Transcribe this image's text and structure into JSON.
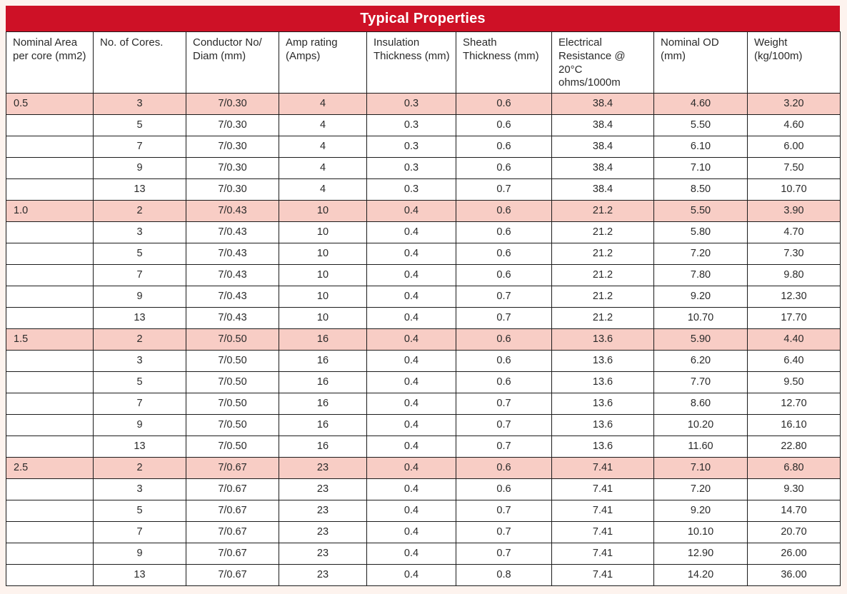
{
  "title_bar": {
    "label": "Typical Properties"
  },
  "colors": {
    "header_red": "#ce1126",
    "title_text": "#ffffff",
    "row_highlight_pink": "#f8cdc5",
    "grid_border": "#1b1b1b",
    "page_background": "#fdf3ee"
  },
  "table": {
    "columns": [
      "Nominal Area\nper core (mm2)",
      "No. of Cores.",
      "Conductor No/\nDiam (mm)",
      "Amp rating\n(Amps)",
      "Insulation\nThickness (mm)",
      "Sheath\nThickness (mm)",
      "Electrical\nResistance @ 20°C\nohms/1000m",
      "Nominal OD\n(mm)",
      "Weight\n(kg/100m)"
    ],
    "field_order": [
      "area",
      "cores",
      "conductor",
      "amp",
      "insulation",
      "sheath",
      "resistance",
      "od",
      "weight"
    ],
    "rows": [
      {
        "highlight": true,
        "area": "0.5",
        "cores": "3",
        "conductor": "7/0.30",
        "amp": "4",
        "insulation": "0.3",
        "sheath": "0.6",
        "resistance": "38.4",
        "od": "4.60",
        "weight": "3.20"
      },
      {
        "highlight": false,
        "area": "",
        "cores": "5",
        "conductor": "7/0.30",
        "amp": "4",
        "insulation": "0.3",
        "sheath": "0.6",
        "resistance": "38.4",
        "od": "5.50",
        "weight": "4.60"
      },
      {
        "highlight": false,
        "area": "",
        "cores": "7",
        "conductor": "7/0.30",
        "amp": "4",
        "insulation": "0.3",
        "sheath": "0.6",
        "resistance": "38.4",
        "od": "6.10",
        "weight": "6.00"
      },
      {
        "highlight": false,
        "area": "",
        "cores": "9",
        "conductor": "7/0.30",
        "amp": "4",
        "insulation": "0.3",
        "sheath": "0.6",
        "resistance": "38.4",
        "od": "7.10",
        "weight": "7.50"
      },
      {
        "highlight": false,
        "area": "",
        "cores": "13",
        "conductor": "7/0.30",
        "amp": "4",
        "insulation": "0.3",
        "sheath": "0.7",
        "resistance": "38.4",
        "od": "8.50",
        "weight": "10.70"
      },
      {
        "highlight": true,
        "area": "1.0",
        "cores": "2",
        "conductor": "7/0.43",
        "amp": "10",
        "insulation": "0.4",
        "sheath": "0.6",
        "resistance": "21.2",
        "od": "5.50",
        "weight": "3.90"
      },
      {
        "highlight": false,
        "area": "",
        "cores": "3",
        "conductor": "7/0.43",
        "amp": "10",
        "insulation": "0.4",
        "sheath": "0.6",
        "resistance": "21.2",
        "od": "5.80",
        "weight": "4.70"
      },
      {
        "highlight": false,
        "area": "",
        "cores": "5",
        "conductor": "7/0.43",
        "amp": "10",
        "insulation": "0.4",
        "sheath": "0.6",
        "resistance": "21.2",
        "od": "7.20",
        "weight": "7.30"
      },
      {
        "highlight": false,
        "area": "",
        "cores": "7",
        "conductor": "7/0.43",
        "amp": "10",
        "insulation": "0.4",
        "sheath": "0.6",
        "resistance": "21.2",
        "od": "7.80",
        "weight": "9.80"
      },
      {
        "highlight": false,
        "area": "",
        "cores": "9",
        "conductor": "7/0.43",
        "amp": "10",
        "insulation": "0.4",
        "sheath": "0.7",
        "resistance": "21.2",
        "od": "9.20",
        "weight": "12.30"
      },
      {
        "highlight": false,
        "area": "",
        "cores": "13",
        "conductor": "7/0.43",
        "amp": "10",
        "insulation": "0.4",
        "sheath": "0.7",
        "resistance": "21.2",
        "od": "10.70",
        "weight": "17.70"
      },
      {
        "highlight": true,
        "area": "1.5",
        "cores": "2",
        "conductor": "7/0.50",
        "amp": "16",
        "insulation": "0.4",
        "sheath": "0.6",
        "resistance": "13.6",
        "od": "5.90",
        "weight": "4.40"
      },
      {
        "highlight": false,
        "area": "",
        "cores": "3",
        "conductor": "7/0.50",
        "amp": "16",
        "insulation": "0.4",
        "sheath": "0.6",
        "resistance": "13.6",
        "od": "6.20",
        "weight": "6.40"
      },
      {
        "highlight": false,
        "area": "",
        "cores": "5",
        "conductor": "7/0.50",
        "amp": "16",
        "insulation": "0.4",
        "sheath": "0.6",
        "resistance": "13.6",
        "od": "7.70",
        "weight": "9.50"
      },
      {
        "highlight": false,
        "area": "",
        "cores": "7",
        "conductor": "7/0.50",
        "amp": "16",
        "insulation": "0.4",
        "sheath": "0.7",
        "resistance": "13.6",
        "od": "8.60",
        "weight": "12.70"
      },
      {
        "highlight": false,
        "area": "",
        "cores": "9",
        "conductor": "7/0.50",
        "amp": "16",
        "insulation": "0.4",
        "sheath": "0.7",
        "resistance": "13.6",
        "od": "10.20",
        "weight": "16.10"
      },
      {
        "highlight": false,
        "area": "",
        "cores": "13",
        "conductor": "7/0.50",
        "amp": "16",
        "insulation": "0.4",
        "sheath": "0.7",
        "resistance": "13.6",
        "od": "11.60",
        "weight": "22.80"
      },
      {
        "highlight": true,
        "area": "2.5",
        "cores": "2",
        "conductor": "7/0.67",
        "amp": "23",
        "insulation": "0.4",
        "sheath": "0.6",
        "resistance": "7.41",
        "od": "7.10",
        "weight": "6.80"
      },
      {
        "highlight": false,
        "area": "",
        "cores": "3",
        "conductor": "7/0.67",
        "amp": "23",
        "insulation": "0.4",
        "sheath": "0.6",
        "resistance": "7.41",
        "od": "7.20",
        "weight": "9.30"
      },
      {
        "highlight": false,
        "area": "",
        "cores": "5",
        "conductor": "7/0.67",
        "amp": "23",
        "insulation": "0.4",
        "sheath": "0.7",
        "resistance": "7.41",
        "od": "9.20",
        "weight": "14.70"
      },
      {
        "highlight": false,
        "area": "",
        "cores": "7",
        "conductor": "7/0.67",
        "amp": "23",
        "insulation": "0.4",
        "sheath": "0.7",
        "resistance": "7.41",
        "od": "10.10",
        "weight": "20.70"
      },
      {
        "highlight": false,
        "area": "",
        "cores": "9",
        "conductor": "7/0.67",
        "amp": "23",
        "insulation": "0.4",
        "sheath": "0.7",
        "resistance": "7.41",
        "od": "12.90",
        "weight": "26.00"
      },
      {
        "highlight": false,
        "area": "",
        "cores": "13",
        "conductor": "7/0.67",
        "amp": "23",
        "insulation": "0.4",
        "sheath": "0.8",
        "resistance": "7.41",
        "od": "14.20",
        "weight": "36.00"
      }
    ]
  }
}
